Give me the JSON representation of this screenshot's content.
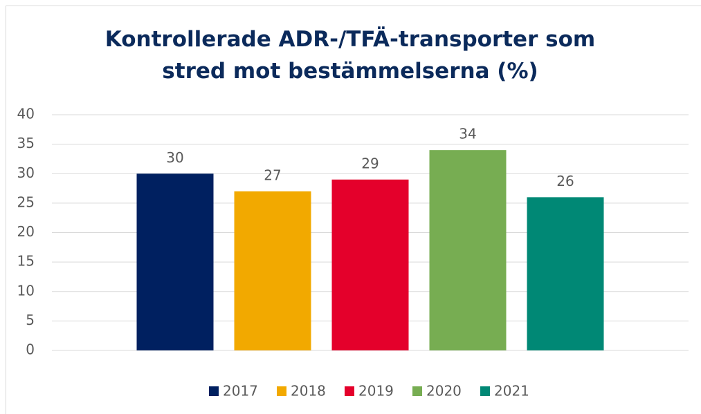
{
  "chart_data": {
    "type": "bar",
    "title": "Kontrollerade ADR-/TFÄ-transporter som stred mot bestämmelserna (%)",
    "categories": [
      null
    ],
    "series": [
      {
        "name": "2017",
        "color": "#002060",
        "values": [
          30
        ]
      },
      {
        "name": "2018",
        "color": "#f2a900",
        "values": [
          27
        ]
      },
      {
        "name": "2019",
        "color": "#e4002b",
        "values": [
          29
        ]
      },
      {
        "name": "2020",
        "color": "#77ad52",
        "values": [
          34
        ]
      },
      {
        "name": "2021",
        "color": "#008875",
        "values": [
          26
        ]
      }
    ],
    "ylim": [
      0,
      40
    ],
    "yticks": [
      0,
      5,
      10,
      15,
      20,
      25,
      30,
      35,
      40
    ],
    "grid": true,
    "legend": "bottom"
  }
}
